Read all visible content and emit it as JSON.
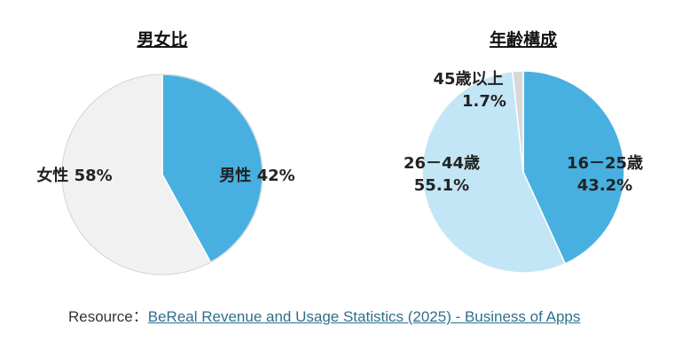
{
  "chart_data": [
    {
      "type": "pie",
      "title": "男女比",
      "slices": [
        {
          "label": "男性",
          "value": 42,
          "value_label": "42%",
          "color": "#47b0e0"
        },
        {
          "label": "女性",
          "value": 58,
          "value_label": "58%",
          "color": "#f1f1f1"
        }
      ]
    },
    {
      "type": "pie",
      "title": "年齢構成",
      "slices": [
        {
          "label": "16－25歳",
          "value": 43.2,
          "value_label": "43.2%",
          "color": "#47b0e0"
        },
        {
          "label": "26－44歳",
          "value": 55.1,
          "value_label": "55.1%",
          "color": "#c3e6f6"
        },
        {
          "label": "45歳以上",
          "value": 1.7,
          "value_label": "1.7%",
          "color": "#d8d8d8"
        }
      ]
    }
  ],
  "resource": {
    "prefix": "Resource：",
    "link_text": "BeReal Revenue and Usage Statistics (2025) - Business of Apps"
  }
}
